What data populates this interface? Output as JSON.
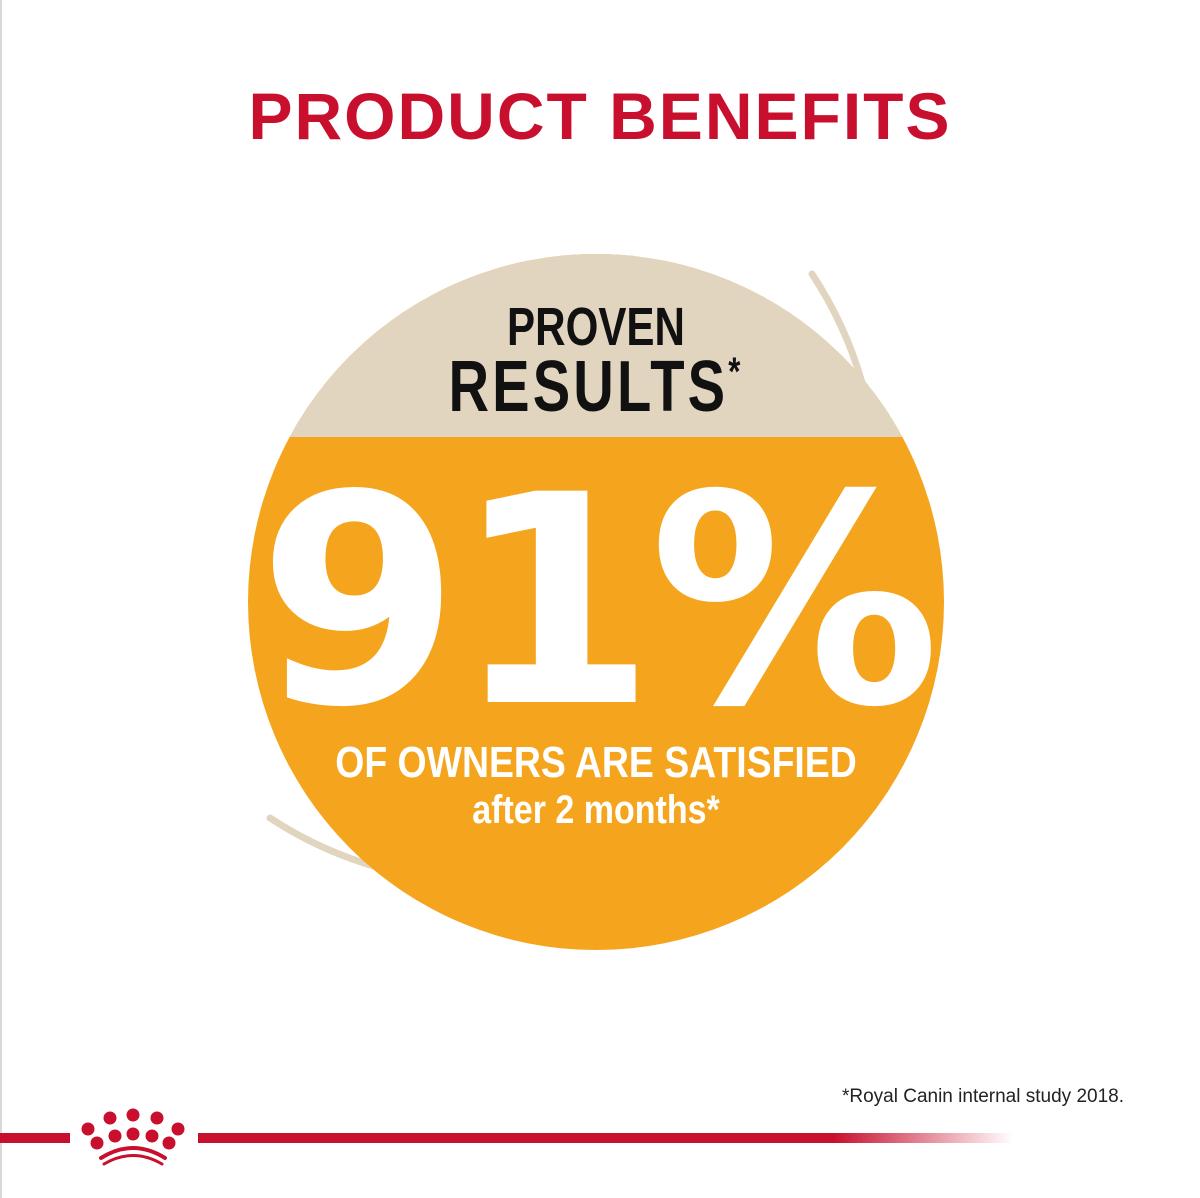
{
  "title": "PRODUCT BENEFITS",
  "badge": {
    "heading_line1": "PROVEN",
    "heading_line2": "RESULTS",
    "heading_asterisk": "*",
    "stat": "91%",
    "stat_value_percent": 91,
    "caption_line1": "OF OWNERS ARE SATISFIED",
    "caption_line2": "after 2 months*"
  },
  "footnote": "*Royal Canin internal study 2018.",
  "logo": {
    "brand": "Royal Canin crown"
  },
  "colors": {
    "brand_red": "#c8102e",
    "orange": "#f5a51d",
    "tan": "#e2d5c0"
  }
}
